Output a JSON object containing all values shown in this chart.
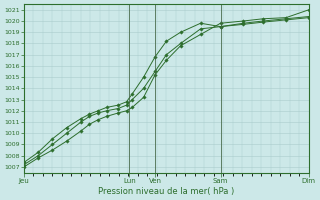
{
  "title": "Pression niveau de la mer( hPa )",
  "bg_color": "#cce8e8",
  "grid_color": "#aacccc",
  "line_color": "#2d6e2d",
  "marker_color": "#2d6e2d",
  "ylim": [
    1006.5,
    1021.5
  ],
  "yticks": [
    1007,
    1008,
    1009,
    1010,
    1011,
    1012,
    1013,
    1014,
    1015,
    1016,
    1017,
    1018,
    1019,
    1020,
    1021
  ],
  "xlim": [
    0,
    100
  ],
  "major_xtick_positions": [
    0,
    37,
    46,
    69,
    100
  ],
  "major_xtick_labels": [
    "Jeu",
    "Lun",
    "Ven",
    "Sam",
    "Dim"
  ],
  "series1_x": [
    0,
    5,
    10,
    15,
    20,
    23,
    26,
    29,
    33,
    36,
    38,
    42,
    46,
    50,
    55,
    62,
    69,
    77,
    84,
    92,
    100
  ],
  "series1_y": [
    1007.0,
    1007.8,
    1008.5,
    1009.3,
    1010.2,
    1010.8,
    1011.2,
    1011.5,
    1011.8,
    1012.0,
    1012.3,
    1013.2,
    1015.2,
    1016.5,
    1017.8,
    1018.8,
    1019.8,
    1020.0,
    1020.2,
    1020.3,
    1021.0
  ],
  "series2_x": [
    0,
    5,
    10,
    15,
    20,
    23,
    26,
    29,
    33,
    36,
    38,
    42,
    46,
    50,
    55,
    62,
    69,
    77,
    84,
    92,
    100
  ],
  "series2_y": [
    1007.2,
    1008.0,
    1009.0,
    1010.0,
    1011.0,
    1011.5,
    1011.8,
    1012.0,
    1012.2,
    1012.5,
    1013.0,
    1014.0,
    1015.5,
    1017.0,
    1018.0,
    1019.3,
    1019.5,
    1019.7,
    1019.9,
    1020.1,
    1020.3
  ],
  "series3_x": [
    0,
    5,
    10,
    15,
    20,
    23,
    26,
    29,
    33,
    36,
    38,
    42,
    46,
    50,
    55,
    62,
    69,
    77,
    84,
    92,
    100
  ],
  "series3_y": [
    1007.4,
    1008.3,
    1009.5,
    1010.5,
    1011.3,
    1011.7,
    1012.0,
    1012.3,
    1012.5,
    1012.8,
    1013.5,
    1015.0,
    1016.8,
    1018.2,
    1019.0,
    1019.8,
    1019.5,
    1019.8,
    1020.0,
    1020.2,
    1020.4
  ]
}
